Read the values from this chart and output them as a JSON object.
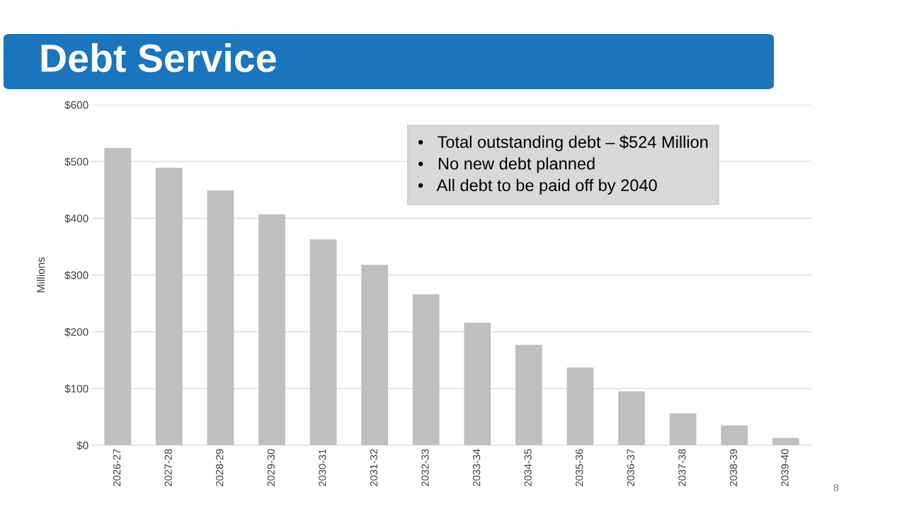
{
  "chart_data": {
    "type": "bar",
    "title": "Debt Service",
    "ylabel": "Millions",
    "categories": [
      "2026-27",
      "2027-28",
      "2028-29",
      "2029-30",
      "2030-31",
      "2031-32",
      "2032-33",
      "2033-34",
      "2034-35",
      "2035-36",
      "2036-37",
      "2037-38",
      "2038-39",
      "2039-40"
    ],
    "values": [
      524,
      489,
      449,
      407,
      363,
      318,
      266,
      216,
      177,
      137,
      95,
      56,
      35,
      13
    ],
    "color": "#bfbfbf",
    "ylim": [
      0,
      600
    ],
    "yticks": [
      {
        "value": 0,
        "label": "$0"
      },
      {
        "value": 100,
        "label": "$100"
      },
      {
        "value": 200,
        "label": "$200"
      },
      {
        "value": 300,
        "label": "$300"
      },
      {
        "value": 400,
        "label": "$400"
      },
      {
        "value": 500,
        "label": "$500"
      },
      {
        "value": 600,
        "label": "$600"
      }
    ],
    "grid": "y",
    "annotations": [
      "•   Total outstanding debt – $524 Million",
      "•   No new debt planned",
      "•   All debt to be paid off by 2040",
      "8"
    ]
  }
}
